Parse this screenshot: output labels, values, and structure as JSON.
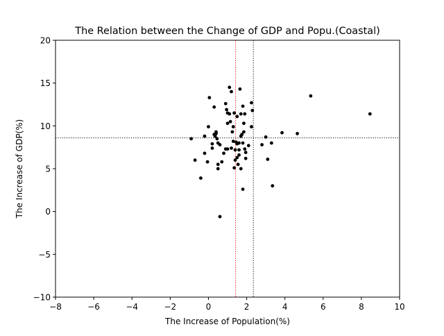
{
  "chart_data": {
    "type": "scatter",
    "title": "The Relation between the Change of GDP and Popu.(Coastal)",
    "xlabel": "The Increase of Population(%)",
    "ylabel": "The Increase of GDP(%)",
    "xlim": [
      -8,
      10
    ],
    "ylim": [
      -10,
      20
    ],
    "xticks": [
      -8,
      -6,
      -4,
      -2,
      0,
      2,
      4,
      6,
      8,
      10
    ],
    "yticks": [
      -10,
      -5,
      0,
      5,
      10,
      15,
      20
    ],
    "xtick_labels": [
      "−8",
      "−6",
      "−4",
      "−2",
      "0",
      "2",
      "4",
      "6",
      "8",
      "10"
    ],
    "ytick_labels": [
      "−10",
      "−5",
      "0",
      "5",
      "10",
      "15",
      "20"
    ],
    "grid": false,
    "marker_color": "#000000",
    "reference_lines": [
      {
        "orientation": "vertical",
        "value": 1.42,
        "color": "#ff0000",
        "style": "dotted"
      },
      {
        "orientation": "vertical",
        "value": 2.35,
        "color": "#000000",
        "style": "dotted"
      },
      {
        "orientation": "horizontal",
        "value": 8.6,
        "color": "#000000",
        "style": "dotted"
      }
    ],
    "points": [
      [
        -0.9,
        8.5
      ],
      [
        -0.7,
        6.0
      ],
      [
        -0.4,
        3.9
      ],
      [
        -0.2,
        6.8
      ],
      [
        -0.2,
        8.8
      ],
      [
        -0.05,
        5.8
      ],
      [
        0.0,
        9.9
      ],
      [
        0.05,
        13.3
      ],
      [
        0.2,
        7.9
      ],
      [
        0.2,
        7.4
      ],
      [
        0.3,
        12.2
      ],
      [
        0.3,
        9.0
      ],
      [
        0.35,
        8.8
      ],
      [
        0.4,
        9.1
      ],
      [
        0.4,
        9.3
      ],
      [
        0.45,
        8.5
      ],
      [
        0.5,
        8.0
      ],
      [
        0.5,
        5.0
      ],
      [
        0.5,
        5.5
      ],
      [
        0.6,
        7.8
      ],
      [
        0.6,
        -0.6
      ],
      [
        0.7,
        5.8
      ],
      [
        0.8,
        6.8
      ],
      [
        0.9,
        7.3
      ],
      [
        0.9,
        12.6
      ],
      [
        0.95,
        11.9
      ],
      [
        1.0,
        11.5
      ],
      [
        1.0,
        7.3
      ],
      [
        1.0,
        10.3
      ],
      [
        1.1,
        14.5
      ],
      [
        1.1,
        11.4
      ],
      [
        1.15,
        10.5
      ],
      [
        1.2,
        7.4
      ],
      [
        1.2,
        14.0
      ],
      [
        1.25,
        9.3
      ],
      [
        1.3,
        9.9
      ],
      [
        1.3,
        8.2
      ],
      [
        1.35,
        11.5
      ],
      [
        1.35,
        5.1
      ],
      [
        1.4,
        7.2
      ],
      [
        1.4,
        6.0
      ],
      [
        1.45,
        8.1
      ],
      [
        1.5,
        6.3
      ],
      [
        1.5,
        7.9
      ],
      [
        1.5,
        11.1
      ],
      [
        1.55,
        5.5
      ],
      [
        1.6,
        8.0
      ],
      [
        1.6,
        6.6
      ],
      [
        1.6,
        7.2
      ],
      [
        1.65,
        14.3
      ],
      [
        1.7,
        11.4
      ],
      [
        1.7,
        8.8
      ],
      [
        1.7,
        5.0
      ],
      [
        1.75,
        9.0
      ],
      [
        1.8,
        12.3
      ],
      [
        1.8,
        8.0
      ],
      [
        1.8,
        2.6
      ],
      [
        1.85,
        9.3
      ],
      [
        1.85,
        10.3
      ],
      [
        1.9,
        11.4
      ],
      [
        1.9,
        7.3
      ],
      [
        1.95,
        6.9
      ],
      [
        1.95,
        6.2
      ],
      [
        2.1,
        7.7
      ],
      [
        2.25,
        12.7
      ],
      [
        2.25,
        9.9
      ],
      [
        2.3,
        11.8
      ],
      [
        2.8,
        7.8
      ],
      [
        3.0,
        8.7
      ],
      [
        3.1,
        6.1
      ],
      [
        3.3,
        8.0
      ],
      [
        3.35,
        3.0
      ],
      [
        3.85,
        9.2
      ],
      [
        4.65,
        9.1
      ],
      [
        5.35,
        13.5
      ],
      [
        8.45,
        11.4
      ]
    ]
  }
}
